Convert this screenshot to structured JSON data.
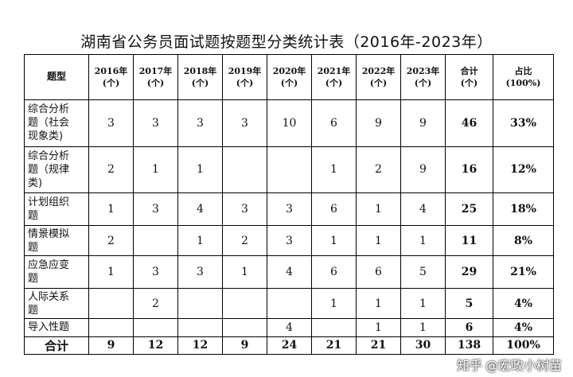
{
  "title": "湖南省公务员面试题按题型分类统计表（2016年-2023年）",
  "header": {
    "type": "题型",
    "years": [
      {
        "year": "2016年",
        "unit": "(个)"
      },
      {
        "year": "2017年",
        "unit": "(个)"
      },
      {
        "year": "2018年",
        "unit": "(个)"
      },
      {
        "year": "2019年",
        "unit": "(个)"
      },
      {
        "year": "2020年",
        "unit": "(个)"
      },
      {
        "year": "2021年",
        "unit": "(个)"
      },
      {
        "year": "2022年",
        "unit": "(个)"
      },
      {
        "year": "2023年",
        "unit": "(个)"
      }
    ],
    "total": {
      "label": "合计",
      "unit": "(个)"
    },
    "ratio": {
      "label": "占比",
      "unit": "(100%)"
    }
  },
  "rows": [
    {
      "name_lines": [
        "综合分析",
        "题（社会",
        "现象类)"
      ],
      "values": [
        "3",
        "3",
        "3",
        "3",
        "10",
        "6",
        "9",
        "9"
      ],
      "total": "46",
      "ratio": "33%"
    },
    {
      "name_lines": [
        "综合分析",
        "题（规律",
        "类)"
      ],
      "values": [
        "2",
        "1",
        "1",
        "",
        "",
        "1",
        "2",
        "9"
      ],
      "total": "16",
      "ratio": "12%"
    },
    {
      "name_lines": [
        "计划组织",
        "题"
      ],
      "values": [
        "1",
        "3",
        "4",
        "3",
        "3",
        "6",
        "1",
        "4"
      ],
      "total": "25",
      "ratio": "18%"
    },
    {
      "name_lines": [
        "情景模拟",
        "题"
      ],
      "values": [
        "2",
        "",
        "1",
        "2",
        "3",
        "1",
        "1",
        "1"
      ],
      "total": "11",
      "ratio": "8%"
    },
    {
      "name_lines": [
        "应急应变",
        "题"
      ],
      "values": [
        "1",
        "3",
        "3",
        "1",
        "4",
        "6",
        "6",
        "5"
      ],
      "total": "29",
      "ratio": "21%"
    },
    {
      "name_lines": [
        "人际关系",
        "题"
      ],
      "values": [
        "",
        "2",
        "",
        "",
        "",
        "1",
        "1",
        "1"
      ],
      "total": "5",
      "ratio": "4%"
    },
    {
      "name_lines": [
        "导入性题"
      ],
      "values": [
        "",
        "",
        "",
        "",
        "4",
        "",
        "1",
        "1"
      ],
      "total": "6",
      "ratio": "4%"
    }
  ],
  "totals": {
    "label": "合计",
    "values": [
      "9",
      "12",
      "12",
      "9",
      "24",
      "21",
      "21",
      "30"
    ],
    "total": "138",
    "ratio": "100%"
  },
  "watermark": {
    "brand": "知乎",
    "author": "@宏政小树苗"
  }
}
